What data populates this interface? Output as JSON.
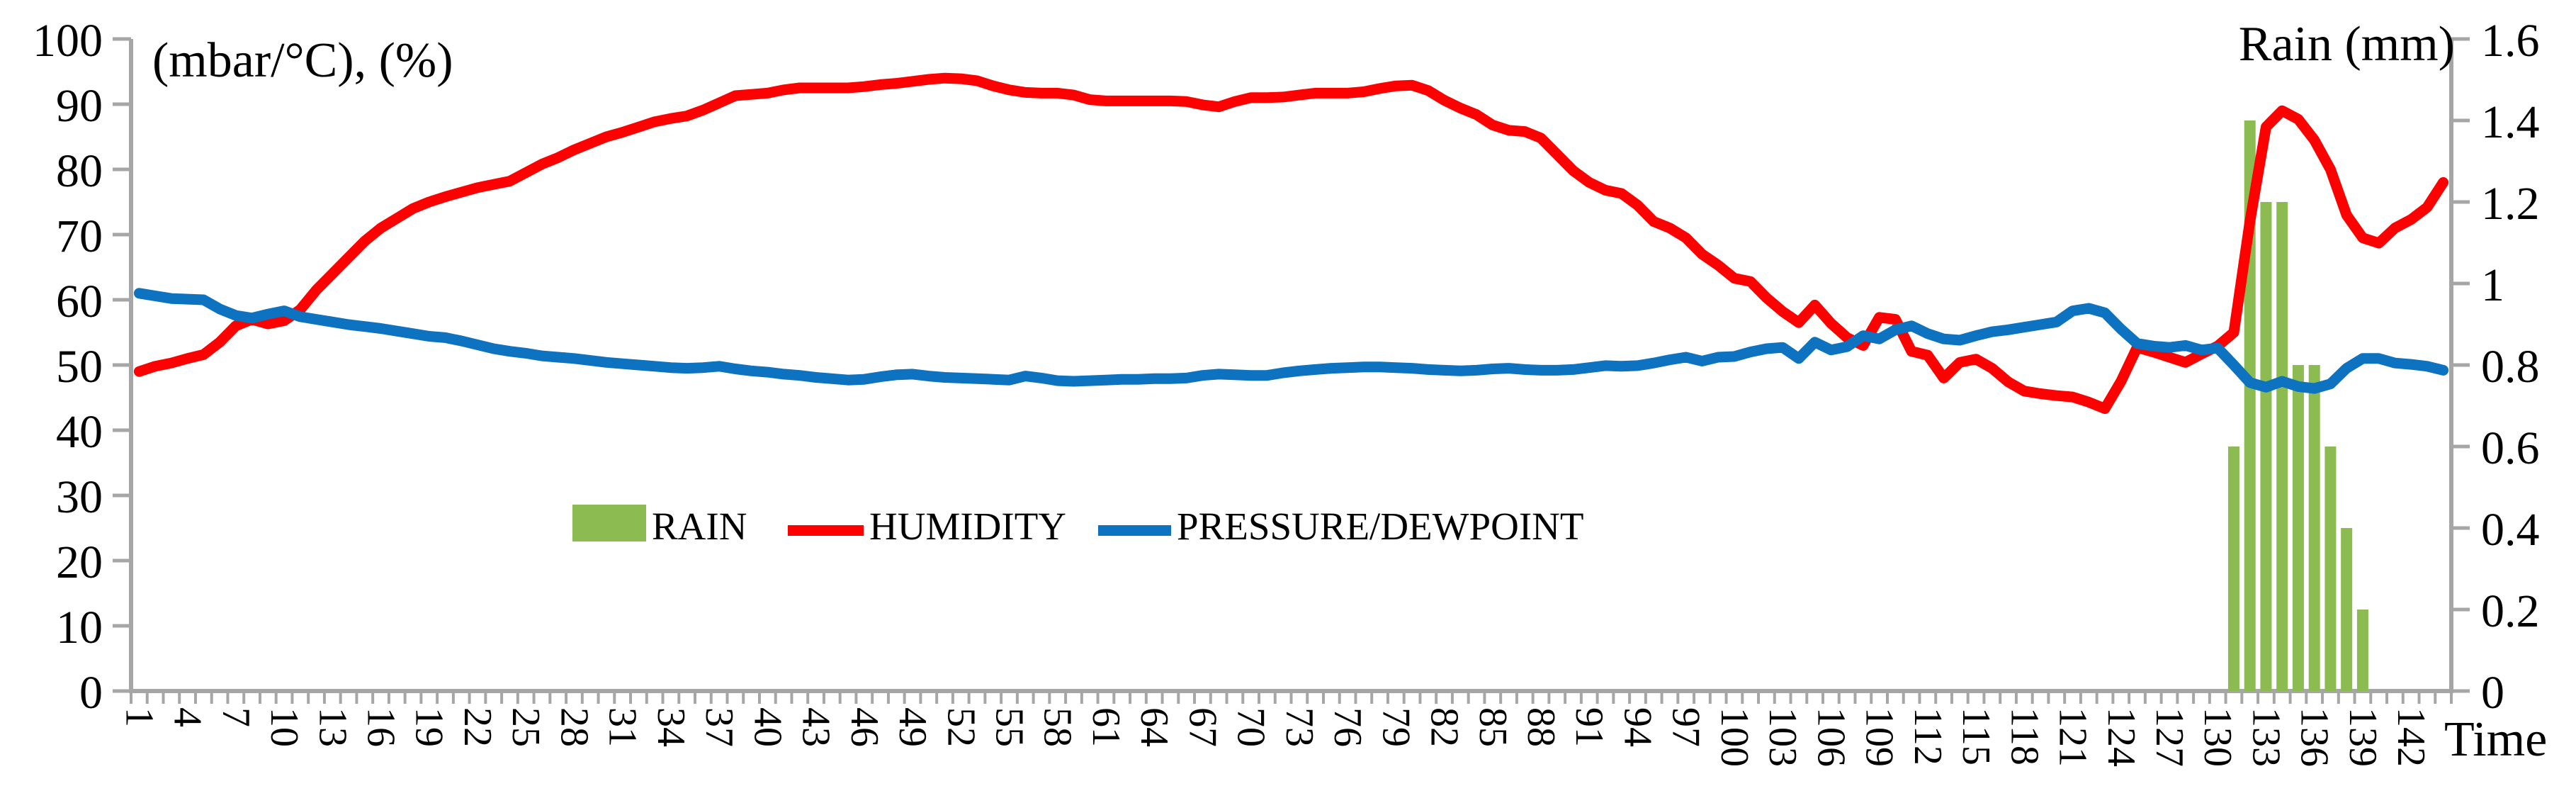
{
  "chart_data": {
    "type": "combo-bar-line",
    "title_left": "(mbar/°C), (%)",
    "title_right": "Rain (mm)",
    "xlabel": "Time",
    "grid": false,
    "axis_color": "#A6A6A6",
    "background": "#FFFFFF",
    "x_range": [
      1,
      144
    ],
    "x_tick_labels": [
      "1",
      "4",
      "7",
      "10",
      "13",
      "16",
      "19",
      "22",
      "25",
      "28",
      "31",
      "34",
      "37",
      "40",
      "43",
      "46",
      "49",
      "52",
      "55",
      "58",
      "61",
      "64",
      "67",
      "70",
      "73",
      "76",
      "79",
      "82",
      "85",
      "88",
      "91",
      "94",
      "97",
      "100",
      "103",
      "106",
      "109",
      "112",
      "115",
      "118",
      "121",
      "124",
      "127",
      "130",
      "133",
      "136",
      "139",
      "142"
    ],
    "left_axis": {
      "min": 0,
      "max": 100,
      "step": 10,
      "tick_labels": [
        "0",
        "10",
        "20",
        "30",
        "40",
        "50",
        "60",
        "70",
        "80",
        "90",
        "100"
      ]
    },
    "right_axis": {
      "min": 0,
      "max": 1.6,
      "step": 0.2,
      "tick_labels": [
        "0",
        "0.2",
        "0.4",
        "0.6",
        "0.8",
        "1",
        "1.2",
        "1.4",
        "1.6"
      ]
    },
    "legend": {
      "position": "middle-left-of-center",
      "items": [
        "RAIN",
        "HUMIDITY",
        "PRESSURE/DEWPOINT"
      ]
    },
    "series": [
      {
        "name": "RAIN",
        "type": "bar",
        "axis": "right",
        "color": "#8CBB52",
        "x": [
          131,
          132,
          133,
          134,
          135,
          136,
          137,
          138,
          139
        ],
        "values": [
          0.6,
          1.4,
          1.2,
          1.2,
          0.8,
          0.8,
          0.6,
          0.4,
          0.2
        ]
      },
      {
        "name": "HUMIDITY",
        "type": "line",
        "axis": "left",
        "color": "#FE0000",
        "values": [
          49,
          49.8,
          50.3,
          51,
          51.6,
          53.5,
          56,
          57,
          56.3,
          56.8,
          58.5,
          61.5,
          64,
          66.5,
          69,
          71,
          72.5,
          74,
          75,
          75.8,
          76.5,
          77.2,
          77.7,
          78.2,
          79.5,
          80.8,
          81.8,
          83,
          84,
          85,
          85.7,
          86.5,
          87.3,
          87.8,
          88.2,
          89.1,
          90.2,
          91.3,
          91.5,
          91.7,
          92.2,
          92.5,
          92.5,
          92.5,
          92.5,
          92.7,
          93,
          93.2,
          93.5,
          93.8,
          94,
          93.9,
          93.6,
          92.8,
          92.2,
          91.8,
          91.7,
          91.7,
          91.4,
          90.7,
          90.5,
          90.5,
          90.5,
          90.5,
          90.5,
          90.4,
          89.9,
          89.6,
          90.4,
          91,
          91,
          91.1,
          91.4,
          91.7,
          91.7,
          91.7,
          91.9,
          92.4,
          92.8,
          92.9,
          92.1,
          90.6,
          89.4,
          88.4,
          86.8,
          86,
          85.8,
          84.8,
          82.3,
          79.8,
          78,
          76.8,
          76.3,
          74.5,
          72,
          71,
          69.5,
          67,
          65.3,
          63.3,
          62.8,
          60.3,
          58.2,
          56.5,
          59.2,
          56.4,
          54.2,
          53,
          57.3,
          57,
          52.1,
          51.5,
          48,
          50.4,
          50.9,
          49.5,
          47.4,
          46,
          45.6,
          45.3,
          45.1,
          44.3,
          43.3,
          47.5,
          52.7,
          52,
          51.2,
          50.4,
          51.7,
          52.9,
          55,
          72,
          86.5,
          89,
          87.7,
          84.5,
          80,
          73,
          69.5,
          68.7,
          71,
          72.3,
          74.2,
          78
        ]
      },
      {
        "name": "PRESSURE/DEWPOINT",
        "type": "line",
        "axis": "left",
        "color": "#0D72BF",
        "values": [
          61,
          60.6,
          60.2,
          60.1,
          60,
          58.6,
          57.6,
          57.2,
          57.8,
          58.3,
          57.4,
          57,
          56.6,
          56.2,
          55.9,
          55.6,
          55.2,
          54.8,
          54.4,
          54.2,
          53.7,
          53.1,
          52.5,
          52.1,
          51.8,
          51.4,
          51.2,
          51,
          50.7,
          50.4,
          50.2,
          50,
          49.8,
          49.6,
          49.5,
          49.6,
          49.8,
          49.4,
          49.1,
          48.9,
          48.6,
          48.4,
          48.1,
          47.9,
          47.7,
          47.8,
          48.2,
          48.5,
          48.6,
          48.3,
          48.1,
          48,
          47.9,
          47.8,
          47.7,
          48.3,
          48,
          47.6,
          47.5,
          47.6,
          47.7,
          47.8,
          47.8,
          47.9,
          47.9,
          48,
          48.4,
          48.6,
          48.5,
          48.4,
          48.4,
          48.8,
          49.1,
          49.3,
          49.5,
          49.6,
          49.7,
          49.7,
          49.6,
          49.5,
          49.3,
          49.2,
          49.1,
          49.2,
          49.4,
          49.5,
          49.3,
          49.2,
          49.2,
          49.3,
          49.6,
          49.9,
          49.8,
          49.9,
          50.3,
          50.8,
          51.2,
          50.6,
          51.2,
          51.3,
          52,
          52.5,
          52.7,
          51,
          53.5,
          52.3,
          52.8,
          54.5,
          54,
          55.4,
          56,
          54.8,
          54,
          53.8,
          54.5,
          55.1,
          55.4,
          55.8,
          56.2,
          56.6,
          58.3,
          58.7,
          58,
          55.5,
          53.3,
          52.9,
          52.7,
          53,
          52.3,
          52.6,
          50,
          47.3,
          46.6,
          47.5,
          46.7,
          46.4,
          47.1,
          49.5,
          51,
          51,
          50.3,
          50.1,
          49.8,
          49.2
        ]
      }
    ]
  }
}
